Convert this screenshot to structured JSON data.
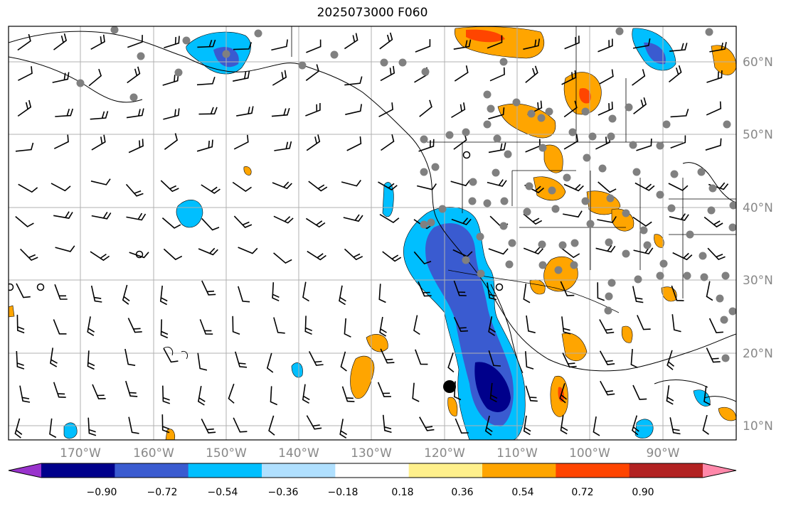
{
  "title": "2025073000 F060",
  "map": {
    "longitude_labels": [
      "170°W",
      "160°W",
      "150°W",
      "140°W",
      "130°W",
      "120°W",
      "110°W",
      "100°W",
      "90°W"
    ],
    "latitude_labels": [
      "60°N",
      "50°N",
      "40°N",
      "30°N",
      "20°N",
      "10°N"
    ],
    "grid": true,
    "gridline_color": "#b0b0b0",
    "land_outline_color": "#000000",
    "station_marker_color": "#808080"
  },
  "colorbar": {
    "tick_labels": [
      "−0.90",
      "−0.72",
      "−0.54",
      "−0.36",
      "−0.18",
      "0.18",
      "0.36",
      "0.54",
      "0.72",
      "0.90"
    ],
    "colors": [
      "#9933cc",
      "#00008b",
      "#3a5bd0",
      "#00bfff",
      "#b0e0ff",
      "#ffffff",
      "#fff08c",
      "#ffa500",
      "#ff4500",
      "#b22222",
      "#ff88aa"
    ],
    "extend": "both"
  }
}
